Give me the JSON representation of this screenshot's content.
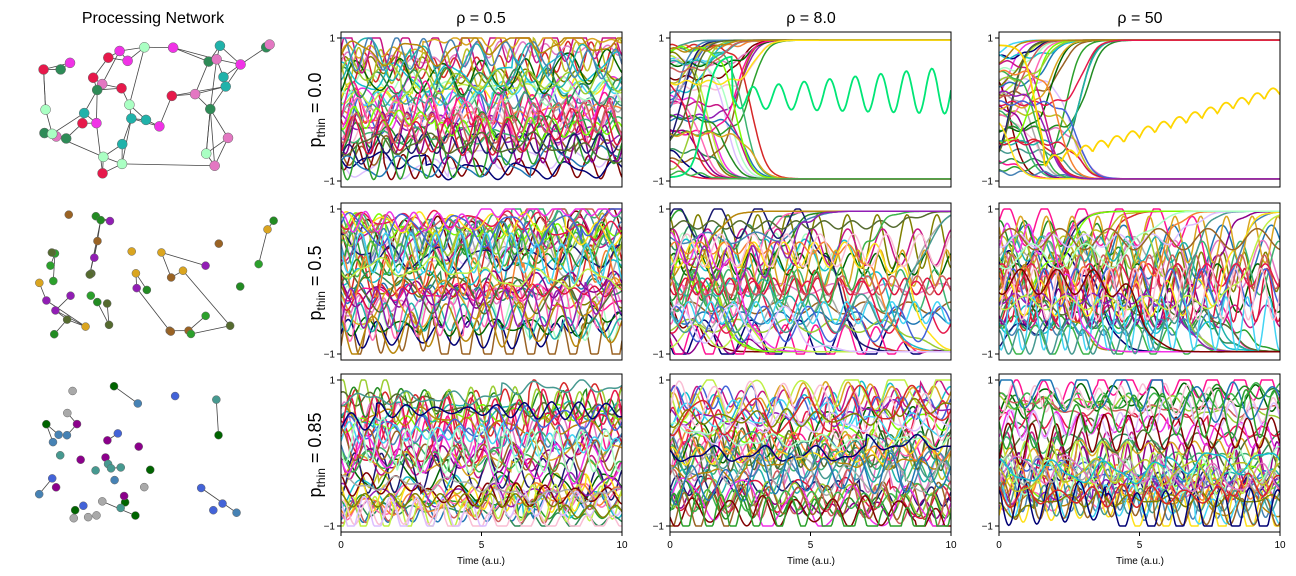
{
  "network_title": "Processing Network",
  "col_titles": [
    "ρ = 0.5",
    "ρ = 8.0",
    "ρ = 50"
  ],
  "row_labels": [
    {
      "main": "p",
      "sub": "thin",
      "rest": " = 0.0"
    },
    {
      "main": "p",
      "sub": "thin",
      "rest": " = 0.5"
    },
    {
      "main": "p",
      "sub": "thin",
      "rest": " = 0.85"
    }
  ],
  "colors": {
    "palette": [
      "#e6194b",
      "#3cb44b",
      "#ffe119",
      "#4363d8",
      "#f58231",
      "#911eb4",
      "#42d4f4",
      "#f032e6",
      "#bfef45",
      "#fabed4",
      "#469990",
      "#dcbeff",
      "#9a6324",
      "#800000",
      "#aaffc3",
      "#808000",
      "#000075",
      "#a9a9a9",
      "#1f77b4",
      "#2ca02c",
      "#d62728",
      "#e377c2",
      "#bcbd22",
      "#17becf",
      "#006400",
      "#ff1493",
      "#228b22",
      "#c71585",
      "#2e8b57",
      "#ff69b4",
      "#3cb371",
      "#8b008b",
      "#191970",
      "#daa520",
      "#7cfc00",
      "#20b2aa",
      "#dc143c",
      "#9acd32",
      "#4682b4",
      "#cd5c5c",
      "#556b2f",
      "#b8860b"
    ],
    "edge": "#444444",
    "node_stroke": "#666666"
  },
  "chart_data": {
    "type": "line",
    "grid": false,
    "xlabel": "Time (a.u.)",
    "xlim": [
      0,
      10
    ],
    "ylim": [
      -1,
      1
    ],
    "x_ticks": [
      0,
      5,
      10
    ],
    "y_ticks": [
      -1,
      1
    ],
    "x_tick_labels": [
      "0",
      "5",
      "10"
    ],
    "y_tick_labels": [
      "−1",
      "1"
    ],
    "n_series_per_panel": 42,
    "panels": [
      {
        "row": 0,
        "col": 0,
        "behavior": "oscillatory",
        "description_values": "all units oscillate between -1 and 1 throughout 0-10"
      },
      {
        "row": 0,
        "col": 1,
        "behavior": "saturating",
        "highlight": {
          "color": "#00e676",
          "baseline": 0.12,
          "amplitude": "growing 0.05-0.25"
        }
      },
      {
        "row": 0,
        "col": 2,
        "behavior": "saturating",
        "highlight": {
          "color": "#ffd600",
          "growth": "rises from -0.8 to 0.5"
        }
      },
      {
        "row": 1,
        "col": 0,
        "behavior": "oscillatory"
      },
      {
        "row": 1,
        "col": 1,
        "behavior": "mixed"
      },
      {
        "row": 1,
        "col": 2,
        "behavior": "mixed"
      },
      {
        "row": 2,
        "col": 0,
        "behavior": "oscillatory"
      },
      {
        "row": 2,
        "col": 1,
        "behavior": "oscillatory"
      },
      {
        "row": 2,
        "col": 2,
        "behavior": "oscillatory"
      }
    ]
  }
}
